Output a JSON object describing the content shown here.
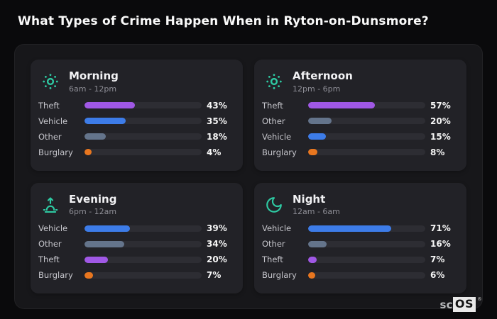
{
  "page": {
    "title": "What Types of Crime Happen When in Ryton-on-Dunsmore?",
    "brand": {
      "prefix": "sc",
      "suffix": "OS",
      "registered_mark": "®"
    }
  },
  "colors": {
    "icon_accent": "#2ec9a2",
    "Theft": "#a058e5",
    "Vehicle": "#3d7ce8",
    "Other": "#64748b",
    "Burglary": "#e8761f",
    "track": "#2d2d33",
    "card_background": "#222227",
    "container_background": "#17171a",
    "page_background": "#0a0a0c"
  },
  "chart_data": [
    {
      "type": "bar",
      "orientation": "horizontal",
      "title": "Morning",
      "subtitle": "6am - 12pm",
      "icon": "sun-icon",
      "unit": "%",
      "xlim": [
        0,
        100
      ],
      "grid": false,
      "categories": [
        "Theft",
        "Vehicle",
        "Other",
        "Burglary"
      ],
      "values": [
        43,
        35,
        18,
        4
      ],
      "labels": [
        "43%",
        "35%",
        "18%",
        "4%"
      ]
    },
    {
      "type": "bar",
      "orientation": "horizontal",
      "title": "Afternoon",
      "subtitle": "12pm - 6pm",
      "icon": "sun-icon",
      "unit": "%",
      "xlim": [
        0,
        100
      ],
      "grid": false,
      "categories": [
        "Theft",
        "Other",
        "Vehicle",
        "Burglary"
      ],
      "values": [
        57,
        20,
        15,
        8
      ],
      "labels": [
        "57%",
        "20%",
        "15%",
        "8%"
      ]
    },
    {
      "type": "bar",
      "orientation": "horizontal",
      "title": "Evening",
      "subtitle": "6pm - 12am",
      "icon": "sunrise-icon",
      "unit": "%",
      "xlim": [
        0,
        100
      ],
      "grid": false,
      "categories": [
        "Vehicle",
        "Other",
        "Theft",
        "Burglary"
      ],
      "values": [
        39,
        34,
        20,
        7
      ],
      "labels": [
        "39%",
        "34%",
        "20%",
        "7%"
      ]
    },
    {
      "type": "bar",
      "orientation": "horizontal",
      "title": "Night",
      "subtitle": "12am - 6am",
      "icon": "moon-icon",
      "unit": "%",
      "xlim": [
        0,
        100
      ],
      "grid": false,
      "categories": [
        "Vehicle",
        "Other",
        "Theft",
        "Burglary"
      ],
      "values": [
        71,
        16,
        7,
        6
      ],
      "labels": [
        "71%",
        "16%",
        "7%",
        "6%"
      ]
    }
  ]
}
